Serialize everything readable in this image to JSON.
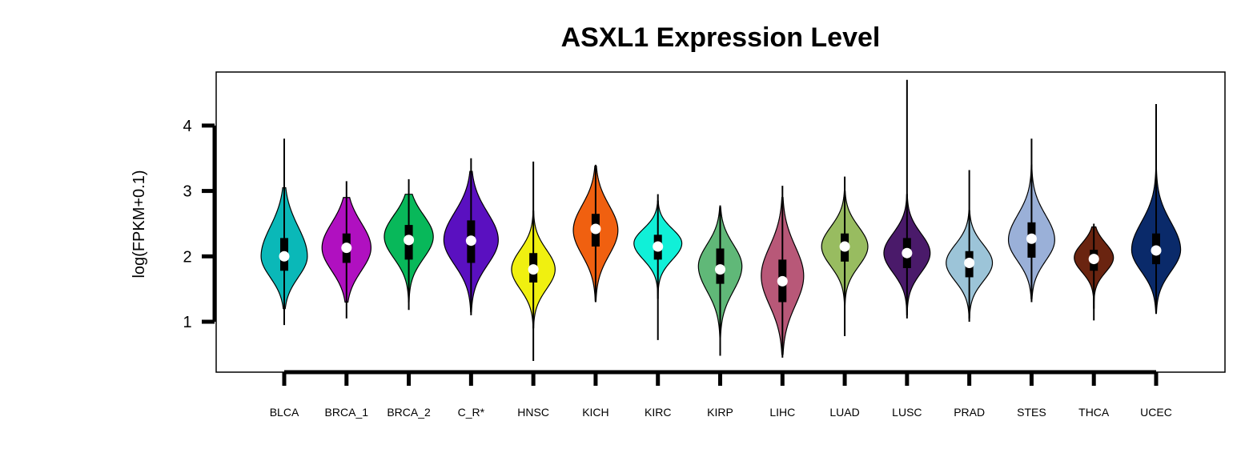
{
  "chart_data": {
    "type": "violin",
    "title": "ASXL1 Expression Level",
    "xlabel": "",
    "ylabel": "log(FPKM+0.1)",
    "ylim": [
      0.25,
      4.8
    ],
    "yticks": [
      1,
      2,
      3,
      4
    ],
    "grid": false,
    "legend": "none",
    "series": [
      {
        "category": "BLCA",
        "color": "#0ab8b8",
        "min": 0.95,
        "max": 3.8,
        "q1": 1.78,
        "median": 2.0,
        "q3": 2.28,
        "wlo": 1.2,
        "whi": 3.05,
        "peak": 2.0,
        "width": 0.85,
        "sdlo": 0.32,
        "sdhi": 0.45
      },
      {
        "category": "BRCA_1",
        "color": "#b010c0",
        "min": 1.05,
        "max": 3.15,
        "q1": 1.9,
        "median": 2.13,
        "q3": 2.35,
        "wlo": 1.3,
        "whi": 2.9,
        "peak": 2.13,
        "width": 0.9,
        "sdlo": 0.35,
        "sdhi": 0.38
      },
      {
        "category": "BRCA_2",
        "color": "#08b85a",
        "min": 1.18,
        "max": 3.18,
        "q1": 1.95,
        "median": 2.25,
        "q3": 2.48,
        "wlo": 1.3,
        "whi": 2.95,
        "peak": 2.3,
        "width": 0.9,
        "sdlo": 0.33,
        "sdhi": 0.33
      },
      {
        "category": "C_R*",
        "color": "#5a10c0",
        "min": 1.1,
        "max": 3.5,
        "q1": 1.9,
        "median": 2.24,
        "q3": 2.55,
        "wlo": 1.15,
        "whi": 3.3,
        "peak": 2.25,
        "width": 1.0,
        "sdlo": 0.38,
        "sdhi": 0.42
      },
      {
        "category": "HNSC",
        "color": "#f0f010",
        "min": 0.4,
        "max": 3.45,
        "q1": 1.6,
        "median": 1.8,
        "q3": 2.05,
        "wlo": 0.9,
        "whi": 2.7,
        "peak": 1.8,
        "width": 0.8,
        "sdlo": 0.3,
        "sdhi": 0.3
      },
      {
        "category": "KICH",
        "color": "#f06010",
        "min": 1.3,
        "max": 3.4,
        "q1": 2.15,
        "median": 2.42,
        "q3": 2.65,
        "wlo": 1.32,
        "whi": 3.38,
        "peak": 2.4,
        "width": 0.82,
        "sdlo": 0.38,
        "sdhi": 0.38
      },
      {
        "category": "KIRC",
        "color": "#10f0d8",
        "min": 0.72,
        "max": 2.95,
        "q1": 1.95,
        "median": 2.15,
        "q3": 2.33,
        "wlo": 1.35,
        "whi": 2.85,
        "peak": 2.2,
        "width": 0.88,
        "sdlo": 0.25,
        "sdhi": 0.22
      },
      {
        "category": "KIRP",
        "color": "#60b878",
        "min": 0.48,
        "max": 2.78,
        "q1": 1.58,
        "median": 1.8,
        "q3": 2.12,
        "wlo": 0.6,
        "whi": 2.75,
        "peak": 1.85,
        "width": 0.8,
        "sdlo": 0.38,
        "sdhi": 0.33
      },
      {
        "category": "LIHC",
        "color": "#b85878",
        "min": 0.45,
        "max": 3.08,
        "q1": 1.3,
        "median": 1.62,
        "q3": 1.95,
        "wlo": 0.5,
        "whi": 2.9,
        "peak": 1.7,
        "width": 0.78,
        "sdlo": 0.45,
        "sdhi": 0.45
      },
      {
        "category": "LUAD",
        "color": "#98bc60",
        "min": 0.78,
        "max": 3.22,
        "q1": 1.92,
        "median": 2.15,
        "q3": 2.35,
        "wlo": 1.25,
        "whi": 3.0,
        "peak": 2.15,
        "width": 0.85,
        "sdlo": 0.3,
        "sdhi": 0.3
      },
      {
        "category": "LUSC",
        "color": "#4a1a6a",
        "min": 1.05,
        "max": 4.7,
        "q1": 1.82,
        "median": 2.05,
        "q3": 2.28,
        "wlo": 1.1,
        "whi": 2.95,
        "peak": 2.05,
        "width": 0.85,
        "sdlo": 0.3,
        "sdhi": 0.3
      },
      {
        "category": "PRAD",
        "color": "#9cc4d8",
        "min": 1.0,
        "max": 3.32,
        "q1": 1.68,
        "median": 1.9,
        "q3": 2.08,
        "wlo": 1.05,
        "whi": 2.7,
        "peak": 1.9,
        "width": 0.85,
        "sdlo": 0.28,
        "sdhi": 0.28
      },
      {
        "category": "STES",
        "color": "#9ab0d8",
        "min": 1.3,
        "max": 3.8,
        "q1": 1.98,
        "median": 2.27,
        "q3": 2.52,
        "wlo": 1.35,
        "whi": 3.4,
        "peak": 2.25,
        "width": 0.85,
        "sdlo": 0.32,
        "sdhi": 0.38
      },
      {
        "category": "THCA",
        "color": "#6a2410",
        "min": 1.02,
        "max": 2.5,
        "q1": 1.78,
        "median": 1.96,
        "q3": 2.1,
        "wlo": 1.2,
        "whi": 2.45,
        "peak": 1.98,
        "width": 0.72,
        "sdlo": 0.22,
        "sdhi": 0.22
      },
      {
        "category": "UCEC",
        "color": "#0a2a6a",
        "min": 1.12,
        "max": 4.33,
        "q1": 1.88,
        "median": 2.09,
        "q3": 2.35,
        "wlo": 1.13,
        "whi": 3.55,
        "peak": 2.1,
        "width": 0.9,
        "sdlo": 0.33,
        "sdhi": 0.42
      }
    ]
  }
}
